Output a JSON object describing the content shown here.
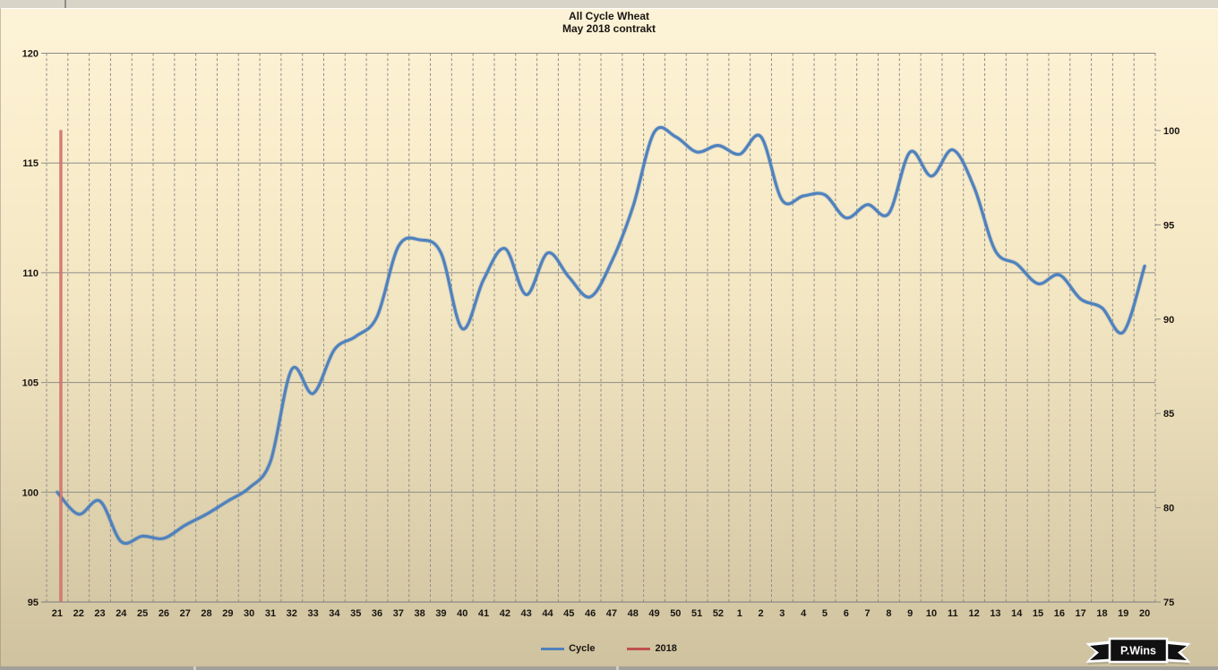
{
  "title": {
    "line1": "All Cycle Wheat",
    "line2": "May 2018 contrakt"
  },
  "badge": {
    "label": "P.Wins"
  },
  "colors": {
    "background_top": "#fdf3d8",
    "background_bottom": "#cfc29e",
    "grid": "#8c8c88",
    "axis_text": "#191512",
    "cycle_line": "#4F81BD",
    "year_line": "#C0504D"
  },
  "chart_data": {
    "type": "line",
    "title": "All Cycle Wheat",
    "subtitle": "May 2018 contrakt",
    "categories": [
      "21",
      "22",
      "23",
      "24",
      "25",
      "26",
      "27",
      "28",
      "29",
      "30",
      "31",
      "32",
      "33",
      "34",
      "35",
      "36",
      "37",
      "38",
      "39",
      "40",
      "41",
      "42",
      "43",
      "44",
      "45",
      "46",
      "47",
      "48",
      "49",
      "50",
      "51",
      "52",
      "1",
      "2",
      "3",
      "4",
      "5",
      "6",
      "7",
      "8",
      "9",
      "10",
      "11",
      "12",
      "13",
      "14",
      "15",
      "16",
      "17",
      "18",
      "19",
      "20"
    ],
    "series": [
      {
        "name": "Cycle",
        "color": "#4F81BD",
        "axis": "left",
        "smooth": true,
        "values": [
          100.0,
          99.0,
          99.6,
          97.75,
          98.0,
          97.9,
          98.5,
          99.0,
          99.6,
          100.2,
          101.4,
          105.6,
          104.5,
          106.5,
          107.1,
          108.0,
          111.2,
          111.5,
          110.9,
          107.45,
          109.7,
          111.1,
          109.0,
          110.9,
          109.8,
          108.9,
          110.5,
          113.0,
          116.4,
          116.2,
          115.5,
          115.8,
          115.4,
          116.2,
          113.3,
          113.5,
          113.55,
          112.5,
          113.1,
          112.7,
          115.5,
          114.4,
          115.6,
          113.9,
          111.0,
          110.4,
          109.5,
          109.9,
          108.8,
          108.4,
          107.3,
          110.3
        ]
      },
      {
        "name": "2018",
        "color": "#C0504D",
        "axis": "left",
        "type": "vertical-segment",
        "x_category": "21",
        "x_fraction": 0.17,
        "value_from": 95,
        "value_to": 116.5
      }
    ],
    "left_axis": {
      "min": 95,
      "max": 120,
      "ticks": [
        95,
        100,
        105,
        110,
        115,
        120
      ]
    },
    "right_axis": {
      "min": 75,
      "max": 104.1,
      "ticks": [
        75,
        80,
        85,
        90,
        95,
        100
      ]
    },
    "grid": {
      "horizontal": "solid",
      "vertical": "dashed"
    },
    "legend_position": "bottom-center"
  }
}
